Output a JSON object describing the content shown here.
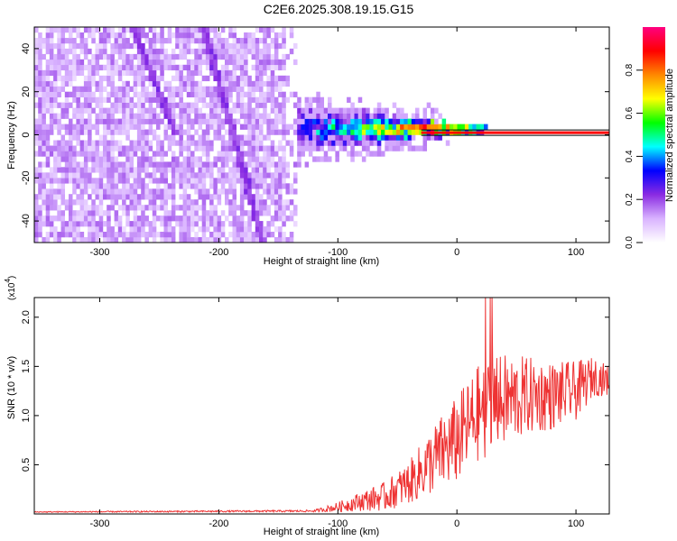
{
  "figure": {
    "title": "C2E6.2025.308.19.15.G15"
  },
  "chart_data": [
    {
      "type": "heatmap",
      "name": "spectrogram",
      "xlabel": "Height of straight line (km)",
      "ylabel": "Frequency (Hz)",
      "xlim": [
        -355,
        128
      ],
      "ylim": [
        -50,
        50
      ],
      "xticks": [
        -300,
        -200,
        -100,
        0,
        100
      ],
      "yticks": [
        -40,
        -20,
        0,
        20,
        40
      ],
      "colorbar": {
        "label": "Normalized spectral amplitude",
        "range": [
          0,
          1
        ],
        "ticks": [
          0.0,
          0.2,
          0.4,
          0.6,
          0.8
        ],
        "tick_labels": [
          "0.0",
          "0.2",
          "0.4",
          "0.6",
          "0.8"
        ],
        "colormap": [
          "#ffffff",
          "#d9b3ff",
          "#8a2be2",
          "#0000ff",
          "#00ffff",
          "#00ff00",
          "#ffff00",
          "#ff8800",
          "#ff0000",
          "#ff0080"
        ]
      },
      "features": {
        "noise_region_x": [
          -355,
          -135
        ],
        "diagonal_streaks": [
          {
            "x": [
              -275,
              -238
            ],
            "y": [
              50,
              0
            ]
          },
          {
            "x": [
              -215,
              -165
            ],
            "y": [
              50,
              -50
            ]
          }
        ],
        "signal_band": {
          "x": [
            -145,
            128
          ],
          "center_y": [
            2,
            1
          ],
          "start_halfwidth": 12,
          "end_halfwidth": 1
        }
      }
    },
    {
      "type": "line",
      "name": "snr",
      "xlabel": "Height of straight line (km)",
      "ylabel": "SNR (10 * v/v)",
      "multiplier_label": "(x10",
      "multiplier_exp": "4",
      "multiplier_close": ")",
      "xlim": [
        -355,
        128
      ],
      "ylim": [
        0,
        2.2
      ],
      "xticks": [
        -300,
        -200,
        -100,
        0,
        100
      ],
      "yticks": [
        0.5,
        1.0,
        1.5,
        2.0
      ],
      "ytick_labels": [
        "0.5",
        "1.0",
        "1.5",
        "2.0"
      ],
      "color": "#ee3333",
      "envelope": {
        "x": [
          -355,
          -120,
          -100,
          -80,
          -60,
          -40,
          -20,
          0,
          20,
          40,
          60,
          80,
          100,
          115,
          128
        ],
        "mean": [
          0.02,
          0.03,
          0.07,
          0.13,
          0.18,
          0.32,
          0.55,
          0.75,
          1.05,
          1.15,
          1.2,
          1.2,
          1.25,
          1.4,
          1.35
        ],
        "amp": [
          0.005,
          0.01,
          0.05,
          0.1,
          0.15,
          0.22,
          0.35,
          0.45,
          0.5,
          0.48,
          0.4,
          0.35,
          0.3,
          0.2,
          0.15
        ]
      }
    }
  ]
}
